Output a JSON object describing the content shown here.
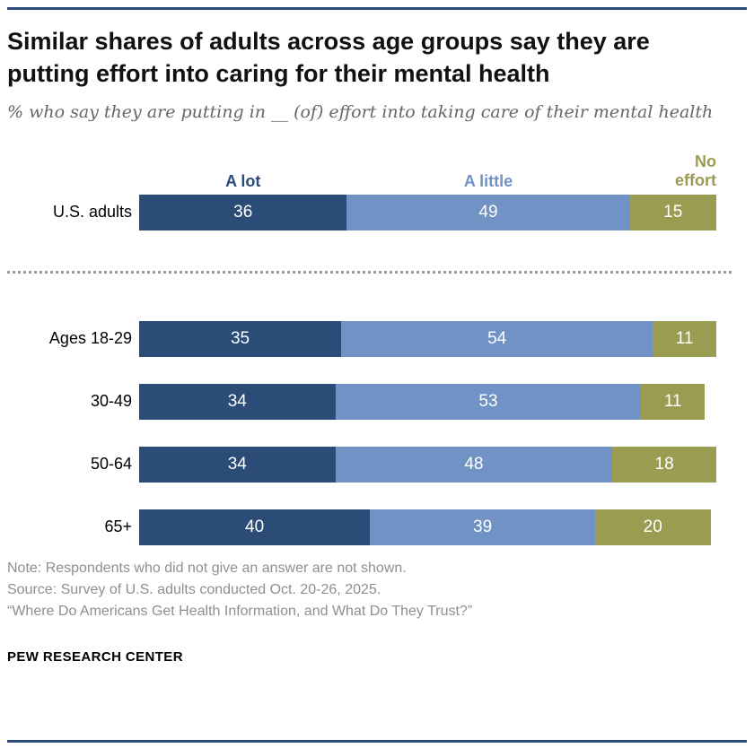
{
  "page": {
    "title": "Similar shares of adults across age groups say they are putting effort into caring for their mental health",
    "subtitle": "% who say they are putting in __ (of) effort into taking care of their mental health",
    "footer": "PEW RESEARCH CENTER"
  },
  "notes": [
    "Note: Respondents who did not give an answer are not shown.",
    "Source: Survey of U.S. adults conducted Oct. 20-26, 2025.",
    "“Where Do Americans Get Health Information, and What Do They Trust?”"
  ],
  "chart_data": {
    "type": "bar",
    "orientation": "horizontal",
    "stacked": true,
    "xlim": [
      0,
      100
    ],
    "legend_position": "top",
    "value_labels": "inside-white",
    "categories": [
      "U.S. adults",
      "Ages 18-29",
      "30-49",
      "50-64",
      "65+"
    ],
    "series": [
      {
        "name": "A lot",
        "color": "#2B4C77",
        "values": [
          36,
          35,
          34,
          34,
          40
        ]
      },
      {
        "name": "A little",
        "color": "#7092C5",
        "values": [
          49,
          54,
          53,
          48,
          39
        ]
      },
      {
        "name": "No effort",
        "color": "#999C51",
        "values": [
          15,
          11,
          11,
          18,
          20
        ]
      }
    ],
    "divider_after_first_category": true
  }
}
